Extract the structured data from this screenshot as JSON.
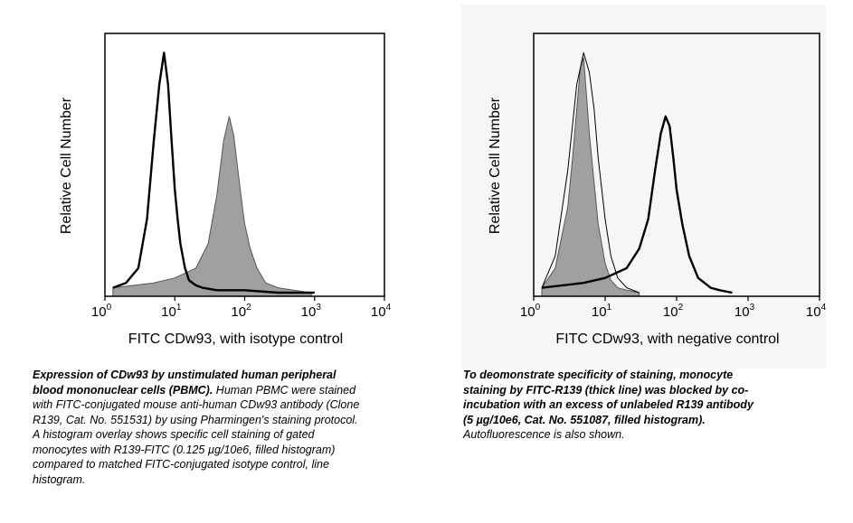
{
  "colors": {
    "filled_histogram": "#a0a0a0",
    "line_histogram": "#000000",
    "axes": "#000000",
    "right_panel_bg": "#f6f6f6"
  },
  "chart_data": [
    {
      "type": "area",
      "xlabel": "FITC CDw93, with isotype control",
      "ylabel": "Relative Cell Number",
      "xscale": "log",
      "xlim": [
        1,
        10000
      ],
      "xticks": [
        {
          "base": "10",
          "exp": "0"
        },
        {
          "base": "10",
          "exp": "1"
        },
        {
          "base": "10",
          "exp": "2"
        },
        {
          "base": "10",
          "exp": "3"
        },
        {
          "base": "10",
          "exp": "4"
        }
      ],
      "grid": false,
      "series": [
        {
          "style": "filled",
          "x": [
            1.3,
            5,
            10,
            20,
            30,
            40,
            50,
            60,
            70,
            80,
            90,
            100,
            120,
            150,
            200,
            300,
            500,
            900
          ],
          "values": [
            0.02,
            0.04,
            0.06,
            0.1,
            0.2,
            0.4,
            0.62,
            0.72,
            0.64,
            0.5,
            0.38,
            0.28,
            0.18,
            0.1,
            0.04,
            0.02,
            0.01,
            0
          ]
        },
        {
          "style": "line",
          "x": [
            1.3,
            2,
            3,
            4,
            5,
            6,
            7,
            8,
            9,
            10,
            11,
            12,
            14,
            16,
            20,
            25,
            40,
            100,
            300,
            1000
          ],
          "values": [
            0.02,
            0.04,
            0.1,
            0.3,
            0.62,
            0.85,
            0.98,
            0.85,
            0.62,
            0.42,
            0.3,
            0.2,
            0.1,
            0.05,
            0.03,
            0.02,
            0.01,
            0.01,
            0,
            0
          ]
        }
      ]
    },
    {
      "type": "area",
      "xlabel": "FITC CDw93, with negative control",
      "ylabel": "Relative Cell Number",
      "xscale": "log",
      "xlim": [
        1,
        10000
      ],
      "xticks": [
        {
          "base": "10",
          "exp": "0"
        },
        {
          "base": "10",
          "exp": "1"
        },
        {
          "base": "10",
          "exp": "2"
        },
        {
          "base": "10",
          "exp": "3"
        },
        {
          "base": "10",
          "exp": "4"
        }
      ],
      "grid": false,
      "series": [
        {
          "style": "filled",
          "x": [
            1.3,
            2,
            3,
            3.5,
            4,
            4.5,
            5,
            5.5,
            6,
            7,
            8,
            10,
            12,
            15,
            20,
            30
          ],
          "values": [
            0.02,
            0.1,
            0.35,
            0.55,
            0.75,
            0.92,
            0.96,
            0.8,
            0.65,
            0.45,
            0.28,
            0.12,
            0.05,
            0.02,
            0.01,
            0
          ]
        },
        {
          "style": "thin-line",
          "x": [
            1.3,
            2,
            3,
            4,
            5,
            6,
            7,
            8,
            10,
            12,
            15,
            20,
            30
          ],
          "values": [
            0.02,
            0.15,
            0.5,
            0.85,
            0.98,
            0.9,
            0.75,
            0.55,
            0.3,
            0.15,
            0.06,
            0.02,
            0
          ]
        },
        {
          "style": "thick-line",
          "x": [
            1.3,
            5,
            10,
            20,
            30,
            40,
            50,
            60,
            70,
            80,
            90,
            100,
            120,
            150,
            200,
            300,
            400,
            600
          ],
          "values": [
            0.02,
            0.04,
            0.06,
            0.1,
            0.18,
            0.3,
            0.5,
            0.65,
            0.72,
            0.68,
            0.55,
            0.42,
            0.28,
            0.15,
            0.06,
            0.02,
            0.01,
            0
          ]
        }
      ]
    }
  ],
  "captions": {
    "left": {
      "bold": "Expression of CDw93 by unstimulated human peripheral blood mononuclear cells (PBMC).",
      "normal": " Human PBMC were stained with FITC-conjugated mouse anti-human CDw93 antibody (Clone R139, Cat. No. 551531) by using Pharmingen's staining protocol. A histogram overlay shows specific cell staining of gated monocytes with R139-FITC (0.125 µg/10e6, filled histogram) compared to matched FITC-conjugated isotype control, line histogram."
    },
    "right": {
      "bold": "To deomonstrate specificity of staining, monocyte staining by FITC-R139 (thick line) was blocked by co-incubation with an excess of unlabeled R139 antibody (5 µg/10e6, Cat. No. 551087, filled histogram).",
      "normal": " Autofluorescence is also shown."
    }
  }
}
